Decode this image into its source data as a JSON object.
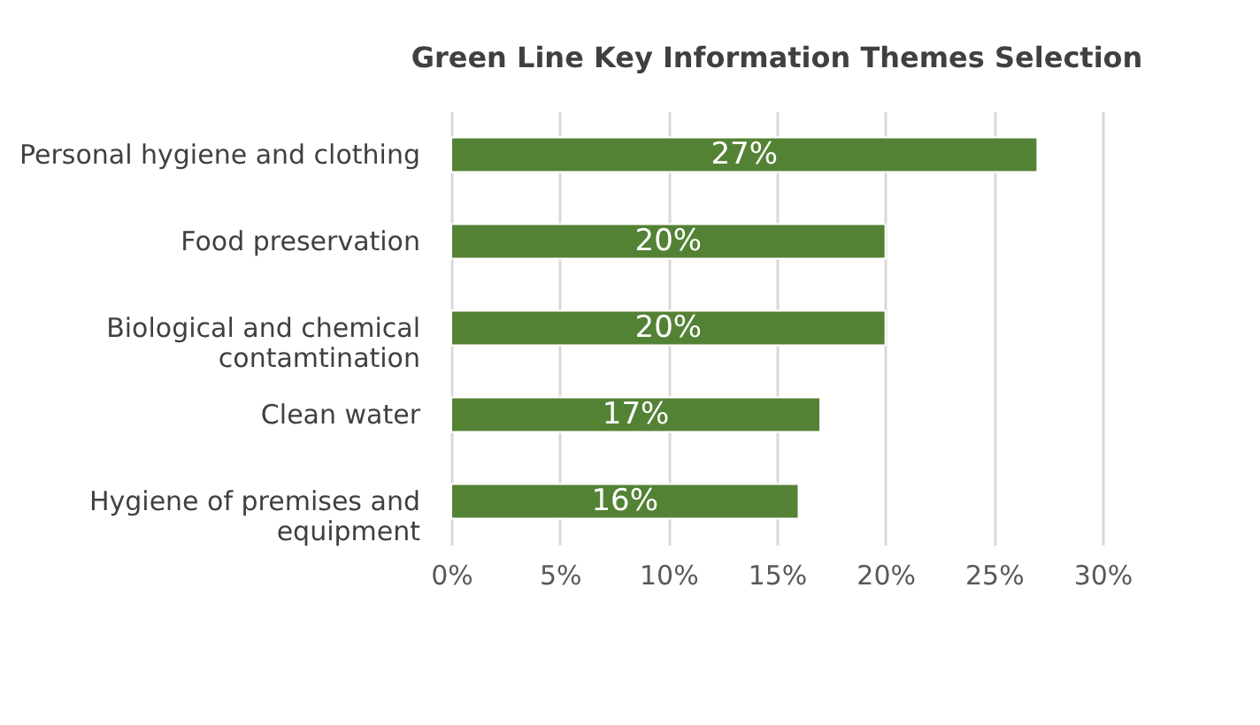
{
  "chart_data": {
    "type": "bar",
    "orientation": "horizontal",
    "title": "Green Line Key Information Themes Selection",
    "categories": [
      "Personal hygiene and clothing",
      "Food preservation",
      "Biological and chemical contamtination",
      "Clean water",
      "Hygiene of premises and equipment"
    ],
    "values": [
      27,
      20,
      20,
      17,
      16
    ],
    "color": "#548235",
    "xlim": [
      0,
      30
    ],
    "xticks": [
      {
        "value": 0,
        "label": "0%"
      },
      {
        "value": 5,
        "label": "5%"
      },
      {
        "value": 10,
        "label": "10%"
      },
      {
        "value": 15,
        "label": "15%"
      },
      {
        "value": 20,
        "label": "20%"
      },
      {
        "value": 25,
        "label": "25%"
      },
      {
        "value": 30,
        "label": "30%"
      }
    ],
    "value_labels": [
      "27%",
      "20%",
      "20%",
      "17%",
      "16%"
    ],
    "grid": "x"
  }
}
